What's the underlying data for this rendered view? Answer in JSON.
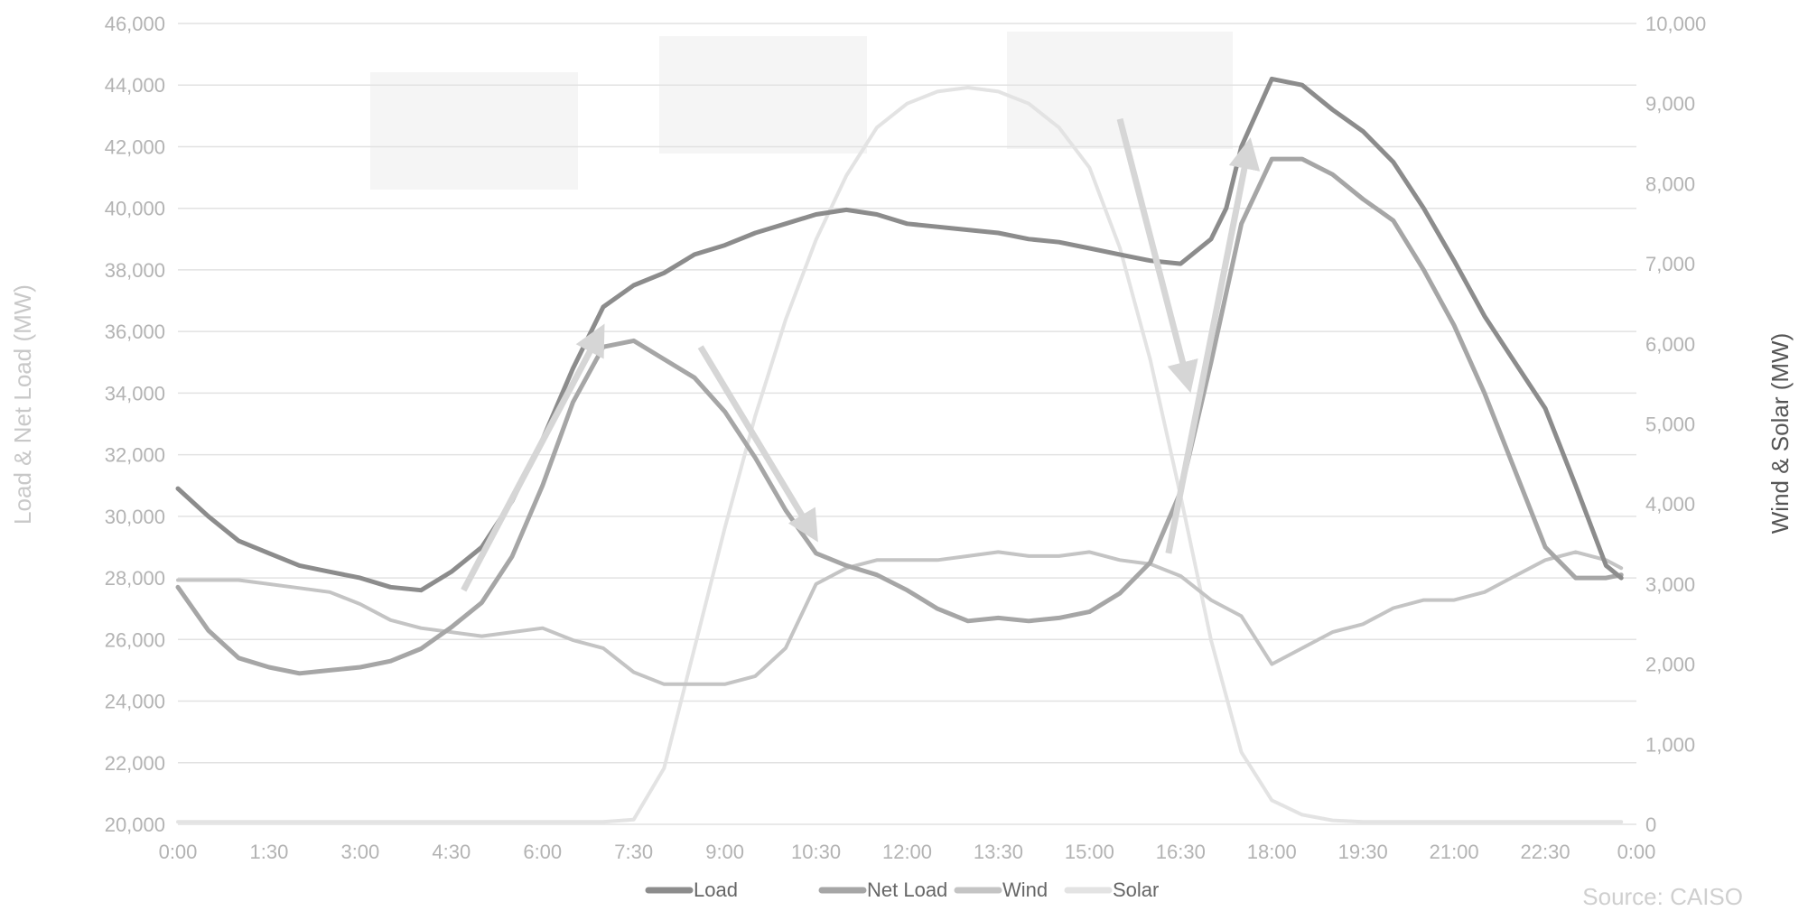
{
  "chart_data": {
    "type": "line",
    "xlabel": "",
    "ylabel": "Load & Net Load (MW)",
    "y2label": "Wind & Solar (MW)",
    "x_ticks": [
      "0:00",
      "1:30",
      "3:00",
      "4:30",
      "6:00",
      "7:30",
      "9:00",
      "10:30",
      "12:00",
      "13:30",
      "15:00",
      "16:30",
      "18:00",
      "19:30",
      "21:00",
      "22:30",
      "0:00"
    ],
    "ylim": [
      20000,
      46000
    ],
    "y_ticks": [
      "20,000",
      "22,000",
      "24,000",
      "26,000",
      "28,000",
      "30,000",
      "32,000",
      "34,000",
      "36,000",
      "38,000",
      "40,000",
      "42,000",
      "44,000",
      "46,000"
    ],
    "y2lim": [
      0,
      10000
    ],
    "y2_ticks": [
      "0",
      "1,000",
      "2,000",
      "3,000",
      "4,000",
      "5,000",
      "6,000",
      "7,000",
      "8,000",
      "9,000",
      "10,000"
    ],
    "legend_position": "bottom",
    "source": "Source: CAISO",
    "colors": {
      "load": "#8c8c8c",
      "net_load": "#a6a6a6",
      "wind": "#c4c4c4",
      "solar": "#e3e3e3",
      "arrow": "#d6d6d6",
      "callout": "#ececec",
      "grid": "#e2e2e2"
    },
    "series": [
      {
        "name": "Load",
        "axis": "left",
        "x": [
          0,
          0.5,
          1,
          1.5,
          2,
          2.5,
          3,
          3.5,
          4,
          4.5,
          5,
          5.5,
          6,
          6.5,
          7,
          7.5,
          8,
          8.5,
          9,
          9.5,
          10,
          10.5,
          11,
          11.5,
          12,
          12.5,
          13,
          13.5,
          14,
          14.5,
          15,
          15.5,
          16,
          16.5,
          17,
          17.25,
          17.5,
          18,
          18.5,
          19,
          19.5,
          20,
          20.5,
          21,
          21.5,
          22,
          22.5,
          23,
          23.5,
          23.75
        ],
        "y": [
          30900,
          30000,
          29200,
          28800,
          28400,
          28200,
          28000,
          27700,
          27600,
          28200,
          29000,
          30500,
          32500,
          34800,
          36800,
          37500,
          37900,
          38500,
          38800,
          39200,
          39500,
          39800,
          39950,
          39800,
          39500,
          39400,
          39300,
          39200,
          39000,
          38900,
          38700,
          38500,
          38300,
          38200,
          39000,
          40000,
          42000,
          44200,
          44000,
          43200,
          42500,
          41500,
          40000,
          38300,
          36500,
          35000,
          33500,
          31000,
          28400,
          28000
        ]
      },
      {
        "name": "Net Load",
        "axis": "left",
        "x": [
          0,
          0.5,
          1,
          1.5,
          2,
          2.5,
          3,
          3.5,
          4,
          4.5,
          5,
          5.5,
          6,
          6.5,
          7,
          7.5,
          8,
          8.5,
          9,
          9.5,
          10,
          10.5,
          11,
          11.5,
          12,
          12.5,
          13,
          13.5,
          14,
          14.5,
          15,
          15.5,
          16,
          16.5,
          17,
          17.5,
          18,
          18.5,
          19,
          19.5,
          20,
          20.5,
          21,
          21.5,
          22,
          22.5,
          23,
          23.5,
          23.75
        ],
        "y": [
          27700,
          26300,
          25400,
          25100,
          24900,
          25000,
          25100,
          25300,
          25700,
          26400,
          27200,
          28700,
          31000,
          33700,
          35500,
          35700,
          35100,
          34500,
          33400,
          31900,
          30200,
          28800,
          28400,
          28100,
          27600,
          27000,
          26600,
          26700,
          26600,
          26700,
          26900,
          27500,
          28500,
          30800,
          35000,
          39500,
          41600,
          41600,
          41100,
          40300,
          39600,
          38000,
          36200,
          34000,
          31500,
          29000,
          28000,
          28000,
          28100
        ]
      },
      {
        "name": "Wind",
        "axis": "right",
        "x": [
          0,
          1,
          2,
          2.5,
          3,
          3.5,
          4,
          5,
          6,
          6.5,
          7,
          7.5,
          8,
          8.5,
          9,
          9.5,
          10,
          10.5,
          11,
          11.5,
          12,
          12.5,
          13,
          13.5,
          14,
          14.5,
          15,
          15.5,
          16,
          16.5,
          17,
          17.5,
          18,
          18.5,
          19,
          19.5,
          20,
          20.5,
          21,
          21.5,
          22,
          22.5,
          23,
          23.5,
          23.75
        ],
        "y": [
          3050,
          3050,
          2950,
          2900,
          2750,
          2550,
          2450,
          2350,
          2450,
          2300,
          2200,
          1900,
          1750,
          1750,
          1750,
          1850,
          2200,
          3000,
          3200,
          3300,
          3300,
          3300,
          3350,
          3400,
          3350,
          3350,
          3400,
          3300,
          3250,
          3100,
          2800,
          2600,
          2000,
          2200,
          2400,
          2500,
          2700,
          2800,
          2800,
          2900,
          3100,
          3300,
          3400,
          3300,
          3200
        ]
      },
      {
        "name": "Solar",
        "axis": "right",
        "x": [
          0,
          6,
          7,
          7.5,
          8,
          8.5,
          9,
          9.5,
          10,
          10.5,
          11,
          11.5,
          12,
          12.5,
          13,
          13.5,
          14,
          14.5,
          15,
          15.5,
          16,
          16.5,
          17,
          17.5,
          18,
          18.5,
          19,
          19.5,
          20,
          21,
          22,
          23,
          23.75
        ],
        "y": [
          30,
          30,
          30,
          60,
          700,
          2200,
          3700,
          5100,
          6300,
          7300,
          8100,
          8700,
          9000,
          9150,
          9200,
          9150,
          9000,
          8700,
          8200,
          7200,
          5800,
          4100,
          2300,
          900,
          300,
          120,
          50,
          30,
          30,
          30,
          30,
          30,
          30
        ]
      }
    ],
    "arrows": [
      {
        "from": [
          4.7,
          27600
        ],
        "to": [
          6.9,
          35800
        ]
      },
      {
        "from": [
          8.6,
          35500
        ],
        "to": [
          10.4,
          29600
        ]
      },
      {
        "from": [
          15.5,
          42900
        ],
        "to": [
          16.6,
          34500
        ]
      },
      {
        "from": [
          16.3,
          28800
        ],
        "to": [
          17.6,
          41800
        ]
      }
    ]
  }
}
